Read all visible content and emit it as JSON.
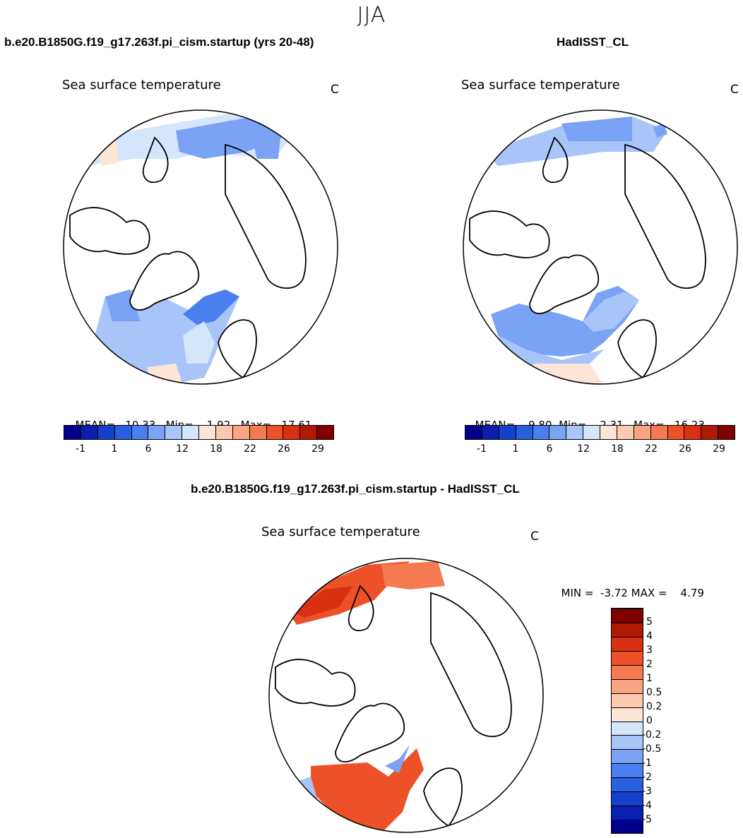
{
  "header": {
    "season": "JJA"
  },
  "panels": [
    {
      "id": "model",
      "case_title": "b.e20.B1850G.f19_g17.263f.pi_cism.startup (yrs 20-48)",
      "plot_title": "Sea surface temperature",
      "unit": "C",
      "stats": {
        "mean_label": "MEAN=",
        "mean": "10.33",
        "min_label": "Min=",
        "min": "1.92",
        "max_label": "Max=",
        "max": "17.61"
      }
    },
    {
      "id": "obs",
      "case_title": "HadISST_CL",
      "plot_title": "Sea surface temperature",
      "unit": "C",
      "stats": {
        "mean_label": "MEAN=",
        "mean": "9.80",
        "min_label": "Min=",
        "min": "2.31",
        "max_label": "Max=",
        "max": "16.23"
      }
    },
    {
      "id": "diff",
      "case_title": "b.e20.B1850G.f19_g17.263f.pi_cism.startup - HadISST_CL",
      "plot_title": "Sea surface temperature",
      "unit": "C",
      "stats": {
        "min_label": "MIN =",
        "min": "-3.72",
        "max_label": "MAX =",
        "max": "4.79"
      }
    }
  ],
  "colorbar_sst": {
    "colors": [
      "#00008b",
      "#0a1fb0",
      "#1540cc",
      "#2a5fe0",
      "#4a7ff0",
      "#7aa2f5",
      "#a8c4f8",
      "#d4e6fb",
      "#fde6d5",
      "#fccab0",
      "#f9a482",
      "#f57a52",
      "#ec5128",
      "#d83010",
      "#b01a05",
      "#800000"
    ],
    "tick_labels": [
      "-1",
      "1",
      "6",
      "12",
      "18",
      "22",
      "26",
      "29"
    ]
  },
  "colorbar_diff": {
    "colors": [
      "#00008b",
      "#0a1fb0",
      "#1540cc",
      "#2a5fe0",
      "#4a7ff0",
      "#7aa2f5",
      "#a8c4f8",
      "#d4e6fb",
      "#fde6d5",
      "#fccab0",
      "#f9a482",
      "#f57a52",
      "#ec5128",
      "#d83010",
      "#b01a05",
      "#800000"
    ],
    "tick_labels": [
      "5",
      "4",
      "3",
      "2",
      "1",
      "0.5",
      "0.2",
      "0",
      "-0.2",
      "-0.5",
      "-1",
      "-2",
      "-3",
      "-4",
      "-5"
    ]
  }
}
